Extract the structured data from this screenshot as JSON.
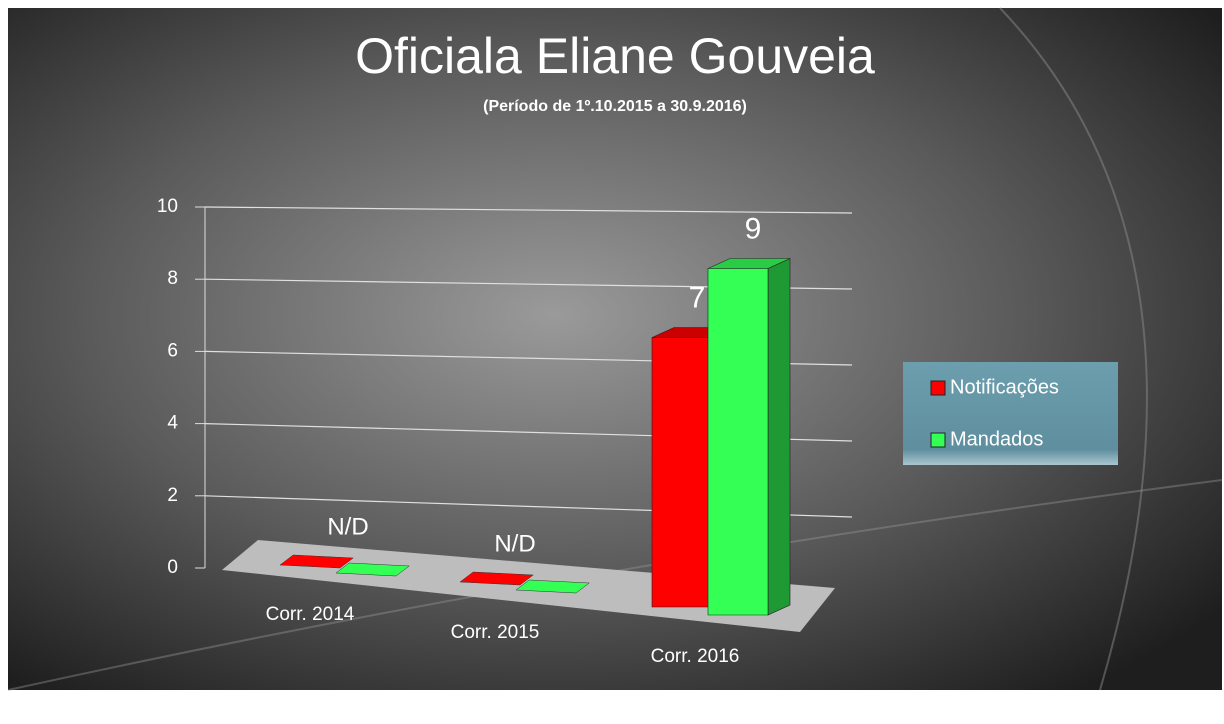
{
  "chart_data": {
    "type": "bar",
    "title": "Oficiala Eliane Gouveia",
    "subtitle": "(Período de 1º.10.2015  a  30.9.2016)",
    "categories": [
      "Corr. 2014",
      "Corr. 2015",
      "Corr. 2016"
    ],
    "series": [
      {
        "name": "Notificações",
        "color": "#ff0000",
        "values": [
          null,
          null,
          7
        ]
      },
      {
        "name": "Mandados",
        "color": "#33ff55",
        "values": [
          null,
          null,
          9
        ]
      }
    ],
    "annotations": [
      "N/D",
      "N/D"
    ],
    "ylim": [
      0,
      10
    ],
    "yticks": [
      0,
      2,
      4,
      6,
      8,
      10
    ],
    "grid": true,
    "legend": "right"
  }
}
